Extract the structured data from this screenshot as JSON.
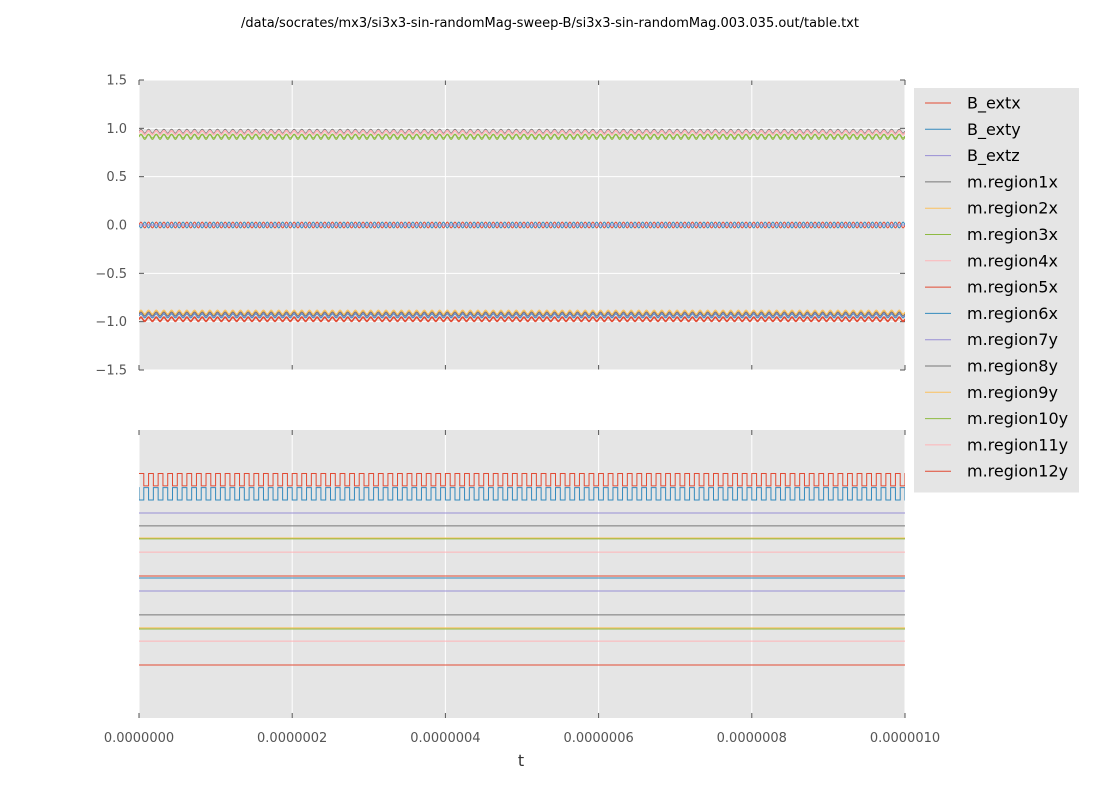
{
  "title": "/data/socrates/mx3/si3x3-sin-randomMag-sweep-B/si3x3-sin-randomMag.003.035.out/table.txt",
  "chart_data": [
    {
      "type": "line",
      "panel": "top",
      "xlim": [
        0,
        1e-06
      ],
      "ylim": [
        -1.5,
        1.5
      ],
      "grid": true,
      "xlabel": "",
      "ylabel": "",
      "y_ticks": [
        "1.5",
        "1.0",
        "0.5",
        "0.0",
        "−0.5",
        "−1.0",
        "−1.5"
      ],
      "x_ticks_shown": false,
      "series": [
        {
          "name": "B_extx",
          "color": "#E24A33",
          "shape": "sine",
          "center": 0.0,
          "amplitude": 0.03,
          "cycles": 100
        },
        {
          "name": "B_exty",
          "color": "#348ABD",
          "shape": "sine",
          "center": 0.0,
          "amplitude": 0.03,
          "cycles": 100,
          "phase": 0.5
        },
        {
          "name": "B_extz",
          "color": "#988ED5",
          "shape": "flat",
          "center": 0.0
        },
        {
          "name": "m.region1x",
          "color": "#777777",
          "shape": "sine",
          "center": 0.97,
          "amplitude": 0.02,
          "cycles": 100
        },
        {
          "name": "m.region2x",
          "color": "#FBC15E",
          "shape": "sine",
          "center": -0.91,
          "amplitude": 0.02,
          "cycles": 100
        },
        {
          "name": "m.region3x",
          "color": "#8EBA42",
          "shape": "sine",
          "center": 0.91,
          "amplitude": 0.025,
          "cycles": 100
        },
        {
          "name": "m.region4x",
          "color": "#FFB5B8",
          "shape": "sine",
          "center": 0.95,
          "amplitude": 0.02,
          "cycles": 100
        },
        {
          "name": "m.region5x",
          "color": "#E24A33",
          "shape": "sine",
          "center": -0.97,
          "amplitude": 0.02,
          "cycles": 100
        },
        {
          "name": "m.region6x",
          "color": "#348ABD",
          "shape": "sine",
          "center": -0.94,
          "amplitude": 0.02,
          "cycles": 100
        },
        {
          "name": "m.region7y",
          "color": "#988ED5",
          "shape": "sine",
          "center": -0.93,
          "amplitude": 0.02,
          "cycles": 100
        },
        {
          "name": "m.region8y",
          "color": "#777777",
          "shape": "sine",
          "center": -0.92,
          "amplitude": 0.02,
          "cycles": 100
        },
        {
          "name": "m.region9y",
          "color": "#FBC15E",
          "shape": "sine",
          "center": -0.9,
          "amplitude": 0.02,
          "cycles": 100
        },
        {
          "name": "m.region10y",
          "color": "#8EBA42",
          "shape": "sine",
          "center": 0.92,
          "amplitude": 0.02,
          "cycles": 100
        },
        {
          "name": "m.region11y",
          "color": "#FFB5B8",
          "shape": "sine",
          "center": 0.96,
          "amplitude": 0.02,
          "cycles": 100
        },
        {
          "name": "m.region12y",
          "color": "#E24A33",
          "shape": "sine",
          "center": -0.98,
          "amplitude": 0.02,
          "cycles": 100
        }
      ]
    },
    {
      "type": "line",
      "panel": "bottom",
      "xlim": [
        0,
        1e-06
      ],
      "ylim": [
        0,
        1
      ],
      "grid": true,
      "xlabel": "t",
      "ylabel": "",
      "x_ticks": [
        "0.0000000",
        "0.0000002",
        "0.0000004",
        "0.0000006",
        "0.0000008",
        "0.0000010"
      ],
      "y_ticks_shown": false,
      "series": [
        {
          "name": "B_extx",
          "color": "#E24A33",
          "shape": "square",
          "low": 0.806,
          "high": 0.849,
          "cycles": 80
        },
        {
          "name": "B_exty",
          "color": "#348ABD",
          "shape": "square",
          "low": 0.757,
          "high": 0.8,
          "cycles": 80,
          "phase": 0.5
        },
        {
          "name": "B_extz",
          "color": "#988ED5",
          "shape": "flat",
          "center": 0.712
        },
        {
          "name": "m.region1x",
          "color": "#777777",
          "shape": "flat",
          "center": 0.667
        },
        {
          "name": "m.region2x",
          "color": "#FBC15E",
          "shape": "flat",
          "center": 0.625
        },
        {
          "name": "m.region3x",
          "color": "#8EBA42",
          "shape": "flat",
          "center": 0.622
        },
        {
          "name": "m.region4x",
          "color": "#FFB5B8",
          "shape": "flat",
          "center": 0.576
        },
        {
          "name": "m.region5x",
          "color": "#E24A33",
          "shape": "flat",
          "center": 0.493
        },
        {
          "name": "m.region6x",
          "color": "#348ABD",
          "shape": "flat",
          "center": 0.486
        },
        {
          "name": "m.region7y",
          "color": "#988ED5",
          "shape": "flat",
          "center": 0.441
        },
        {
          "name": "m.region8y",
          "color": "#777777",
          "shape": "flat",
          "center": 0.358
        },
        {
          "name": "m.region9y",
          "color": "#FBC15E",
          "shape": "flat",
          "center": 0.313
        },
        {
          "name": "m.region10y",
          "color": "#8EBA42",
          "shape": "flat",
          "center": 0.309
        },
        {
          "name": "m.region11y",
          "color": "#FFB5B8",
          "shape": "flat",
          "center": 0.267
        },
        {
          "name": "m.region12y",
          "color": "#E24A33",
          "shape": "flat",
          "center": 0.184
        }
      ]
    }
  ],
  "legend": {
    "placement": "right",
    "entries": [
      {
        "label": "B_extx",
        "color": "#E24A33"
      },
      {
        "label": "B_exty",
        "color": "#348ABD"
      },
      {
        "label": "B_extz",
        "color": "#988ED5"
      },
      {
        "label": "m.region1x",
        "color": "#777777"
      },
      {
        "label": "m.region2x",
        "color": "#FBC15E"
      },
      {
        "label": "m.region3x",
        "color": "#8EBA42"
      },
      {
        "label": "m.region4x",
        "color": "#FFB5B8"
      },
      {
        "label": "m.region5x",
        "color": "#E24A33"
      },
      {
        "label": "m.region6x",
        "color": "#348ABD"
      },
      {
        "label": "m.region7y",
        "color": "#988ED5"
      },
      {
        "label": "m.region8y",
        "color": "#777777"
      },
      {
        "label": "m.region9y",
        "color": "#FBC15E"
      },
      {
        "label": "m.region10y",
        "color": "#8EBA42"
      },
      {
        "label": "m.region11y",
        "color": "#FFB5B8"
      },
      {
        "label": "m.region12y",
        "color": "#E24A33"
      }
    ]
  },
  "colors": {
    "axes_background": "#E5E5E5",
    "grid": "#FFFFFF",
    "tick_label": "#555555",
    "text": "#000000"
  }
}
